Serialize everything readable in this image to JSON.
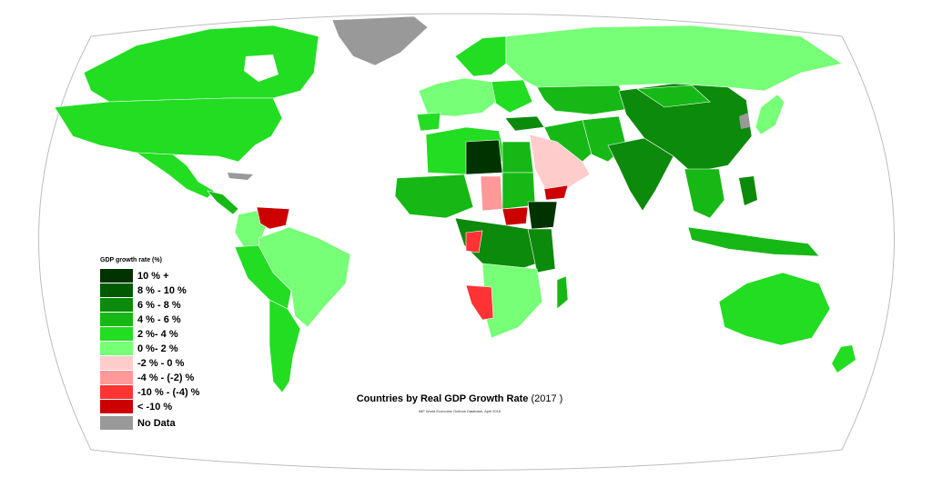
{
  "map": {
    "title": "Countries by Real GDP Growth Rate",
    "year": "(2017 )",
    "source": "IMF World Economic Outlook Database, April 2018",
    "ocean_color": "#ffffff",
    "border_color": "#ffffff"
  },
  "legend": {
    "title": "GDP growth rate (%)",
    "items": [
      {
        "label": "10 % +",
        "color": "#003300"
      },
      {
        "label": "8 % - 10 %",
        "color": "#005a00"
      },
      {
        "label": "6 % - 8 %",
        "color": "#0b8a0b"
      },
      {
        "label": "4 % - 6 %",
        "color": "#16b816"
      },
      {
        "label": "2 %- 4 %",
        "color": "#22dd22"
      },
      {
        "label": "0 %- 2 %",
        "color": "#77ff77"
      },
      {
        "label": "-2 % - 0 %",
        "color": "#ffcccc"
      },
      {
        "label": "-4 % - (-2) %",
        "color": "#ff9999"
      },
      {
        "label": "-10 % - (-4) %",
        "color": "#ff3333"
      },
      {
        "label": "< -10 %",
        "color": "#cc0000"
      },
      {
        "label": "No Data",
        "color": "#999999"
      }
    ]
  }
}
